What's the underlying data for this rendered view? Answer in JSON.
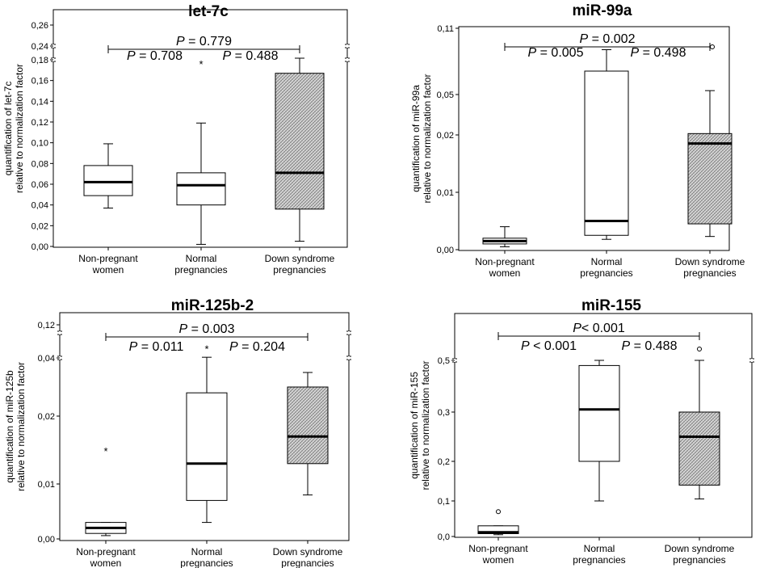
{
  "chart_data": [
    {
      "type": "box",
      "title": "let-7c",
      "ylabel": [
        "quantification of let-7c",
        "relative to normalization factor"
      ],
      "categories": [
        [
          "Non-pregnant",
          "women"
        ],
        [
          "Normal",
          "pregnancies"
        ],
        [
          "Down syndrome",
          "pregnancies"
        ]
      ],
      "y_tick_labels": [
        "0,00",
        "0,02",
        "0,04",
        "0,06",
        "0,08",
        "0,10",
        "0,12",
        "0,14",
        "0,16",
        "0,18",
        "0,24",
        "0,26"
      ],
      "axis_break": "between 0,18 and 0,24",
      "boxes": [
        {
          "min": 0.037,
          "q1": 0.049,
          "median": 0.062,
          "q3": 0.078,
          "max": 0.099,
          "fill": "white"
        },
        {
          "min": 0.002,
          "q1": 0.04,
          "median": 0.059,
          "q3": 0.071,
          "max": 0.119,
          "fill": "white"
        },
        {
          "min": 0.005,
          "q1": 0.036,
          "median": 0.071,
          "q3": 0.167,
          "max": 0.187,
          "fill": "hatched"
        }
      ],
      "outliers": [
        {
          "group": 2,
          "value": 0.177,
          "symbol": "*"
        }
      ],
      "comparisons": [
        {
          "groups": [
            1,
            3
          ],
          "label": "P = 0.779"
        },
        {
          "groups": [
            1,
            2
          ],
          "label": "P = 0.708"
        },
        {
          "groups": [
            2,
            3
          ],
          "label": "P = 0.488"
        }
      ]
    },
    {
      "type": "box",
      "title": "miR-99a",
      "ylabel": [
        "quantification of miR-99a",
        "relative to normalization factor"
      ],
      "categories": [
        [
          "Non-pregnant",
          "women"
        ],
        [
          "Normal",
          "pregnancies"
        ],
        [
          "Down syndrome",
          "pregnancies"
        ]
      ],
      "y_tick_labels": [
        "0,00",
        "0,01",
        "0,02",
        "0,05",
        "0,11"
      ],
      "y_scale": "non-linear (segmented)",
      "boxes": [
        {
          "min": 0.0005,
          "q1": 0.001,
          "median": 0.0015,
          "q3": 0.002,
          "max": 0.004,
          "fill": "white"
        },
        {
          "min": 0.0018,
          "q1": 0.0025,
          "median": 0.005,
          "q3": 0.08,
          "max": 0.095,
          "fill": "white"
        },
        {
          "min": 0.0023,
          "q1": 0.0045,
          "median": 0.0185,
          "q3": 0.021,
          "max": 0.055,
          "fill": "hatched"
        }
      ],
      "outliers": [
        {
          "group": 3,
          "value": 0.097,
          "symbol": "o"
        }
      ],
      "comparisons": [
        {
          "groups": [
            1,
            3
          ],
          "label": "P = 0.002"
        },
        {
          "groups": [
            1,
            2
          ],
          "label": "P = 0.005"
        },
        {
          "groups": [
            2,
            3
          ],
          "label": "P = 0.498"
        }
      ]
    },
    {
      "type": "box",
      "title": "miR-125b-2",
      "ylabel": [
        "quantification of miR-125b",
        "relative to normalization factor"
      ],
      "categories": [
        [
          "Non-pregnant",
          "women"
        ],
        [
          "Normal",
          "pregnancies"
        ],
        [
          "Down syndrome",
          "pregnancies"
        ]
      ],
      "y_tick_labels": [
        "0,00",
        "0,01",
        "0,02",
        "0,04",
        "0,12"
      ],
      "y_scale": "non-linear (segmented)",
      "boxes": [
        {
          "min": 0.0006,
          "q1": 0.001,
          "median": 0.002,
          "q3": 0.003,
          "max": 0.003,
          "fill": "white"
        },
        {
          "min": 0.003,
          "q1": 0.007,
          "median": 0.013,
          "q3": 0.028,
          "max": 0.041,
          "fill": "white"
        },
        {
          "min": 0.008,
          "q1": 0.013,
          "median": 0.017,
          "q3": 0.03,
          "max": 0.035,
          "fill": "hatched"
        }
      ],
      "outliers": [
        {
          "group": 1,
          "value": 0.015,
          "symbol": "*"
        },
        {
          "group": 2,
          "value": 0.055,
          "symbol": "*"
        }
      ],
      "comparisons": [
        {
          "groups": [
            1,
            3
          ],
          "label": "P = 0.003"
        },
        {
          "groups": [
            1,
            2
          ],
          "label": "P = 0.011"
        },
        {
          "groups": [
            2,
            3
          ],
          "label": "P = 0.204"
        }
      ]
    },
    {
      "type": "box",
      "title": "miR-155",
      "ylabel": [
        "quantification of miR-155",
        "relative to normalization factor"
      ],
      "categories": [
        [
          "Non-pregnant",
          "women"
        ],
        [
          "Normal",
          "pregnancies"
        ],
        [
          "Down syndrome",
          "pregnancies"
        ]
      ],
      "y_tick_labels": [
        "0,0",
        "0,1",
        "0,2",
        "0,3",
        "0,5"
      ],
      "y_scale": "non-linear (segmented)",
      "boxes": [
        {
          "min": 0.005,
          "q1": 0.008,
          "median": 0.012,
          "q3": 0.03,
          "max": 0.03,
          "fill": "white"
        },
        {
          "min": 0.1,
          "q1": 0.2,
          "median": 0.31,
          "q3": 0.48,
          "max": 0.5,
          "fill": "white"
        },
        {
          "min": 0.105,
          "q1": 0.14,
          "median": 0.25,
          "q3": 0.3,
          "max": 0.5,
          "fill": "hatched"
        }
      ],
      "outliers": [
        {
          "group": 1,
          "value": 0.07,
          "symbol": "o"
        },
        {
          "group": 3,
          "value": 0.55,
          "symbol": "o"
        }
      ],
      "comparisons": [
        {
          "groups": [
            1,
            3
          ],
          "label": "P< 0.001"
        },
        {
          "groups": [
            1,
            2
          ],
          "label": "P < 0.001"
        },
        {
          "groups": [
            2,
            3
          ],
          "label": "P = 0.488"
        }
      ]
    }
  ]
}
